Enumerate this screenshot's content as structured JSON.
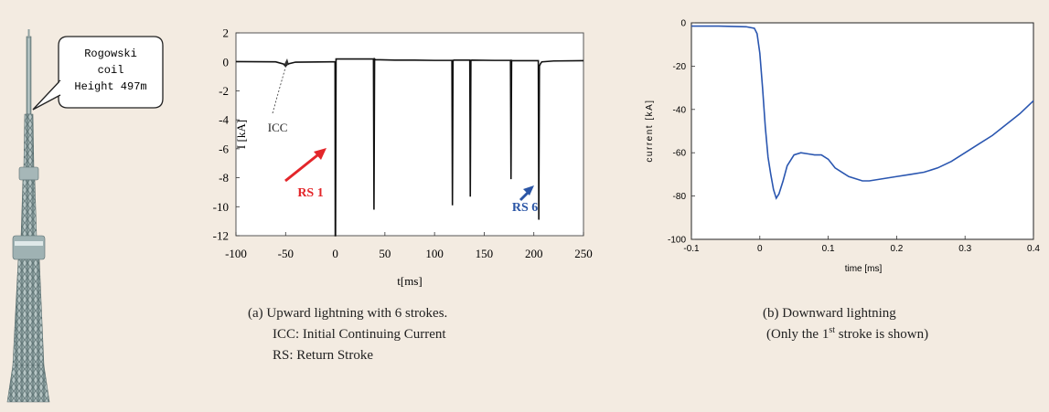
{
  "tower": {
    "callout_lines": [
      "Rogowski",
      "coil",
      "Height 497m"
    ]
  },
  "chart_data": [
    {
      "type": "line",
      "title": "",
      "xlabel": "t[ms]",
      "ylabel": "I [kA]",
      "xlim": [
        -100,
        250
      ],
      "ylim": [
        -12,
        2
      ],
      "xticks": [
        -100,
        -50,
        0,
        50,
        100,
        150,
        200,
        250
      ],
      "yticks": [
        2,
        0,
        -2,
        -4,
        -6,
        -8,
        -10,
        -12
      ],
      "grid": false,
      "color": "#111111",
      "series": [
        {
          "x": [
            -100,
            -60,
            -52,
            -50,
            -48,
            -40,
            -5,
            -0.2,
            0,
            0.3,
            0.8,
            20,
            38.5,
            39,
            39.6,
            40.5,
            60,
            80,
            100,
            117.5,
            118,
            118.6,
            119.5,
            135.5,
            136,
            136.6,
            137.5,
            160,
            176.5,
            177,
            177.6,
            178.5,
            204.5,
            205,
            205.6,
            206.5,
            208,
            220,
            250
          ],
          "y": [
            0.02,
            0.0,
            -0.15,
            -0.3,
            -0.15,
            -0.02,
            0.0,
            0.0,
            -12,
            -12,
            0.2,
            0.2,
            0.2,
            -10.2,
            0.2,
            0.15,
            0.12,
            0.12,
            0.1,
            0.1,
            -9.9,
            0.1,
            0.12,
            0.12,
            -9.3,
            0.1,
            0.12,
            0.1,
            0.1,
            -8.1,
            0.1,
            0.08,
            0.08,
            -10.9,
            -0.3,
            -0.15,
            0.0,
            0.06,
            0.08
          ]
        }
      ],
      "annotations": [
        {
          "text": "ICC",
          "x": -68,
          "y": -4.8
        },
        {
          "text": "RS 1",
          "x": -38,
          "y": -9.3,
          "color": "#e3262a"
        },
        {
          "text": "RS 6",
          "x": 178,
          "y": -10.3,
          "color": "#2b56a6"
        }
      ],
      "caption_lines": [
        "(a) Upward lightning with 6 strokes.",
        "ICC: Initial Continuing Current",
        "RS: Return Stroke"
      ]
    },
    {
      "type": "line",
      "title": "",
      "xlabel": "time [ms]",
      "ylabel": "current [kA]",
      "xlim": [
        -0.1,
        0.4
      ],
      "ylim": [
        -100,
        0
      ],
      "xticks": [
        -0.1,
        0,
        0.1,
        0.2,
        0.3,
        0.4
      ],
      "yticks": [
        0,
        -20,
        -40,
        -60,
        -80,
        -100
      ],
      "grid": false,
      "color": "#2a56b0",
      "series": [
        {
          "x": [
            -0.1,
            -0.06,
            -0.02,
            -0.008,
            -0.004,
            0,
            0.004,
            0.008,
            0.012,
            0.016,
            0.02,
            0.024,
            0.028,
            0.034,
            0.04,
            0.05,
            0.06,
            0.07,
            0.08,
            0.09,
            0.1,
            0.11,
            0.12,
            0.13,
            0.14,
            0.15,
            0.16,
            0.18,
            0.2,
            0.22,
            0.24,
            0.26,
            0.28,
            0.3,
            0.32,
            0.34,
            0.36,
            0.38,
            0.4
          ],
          "y": [
            -1.5,
            -1.5,
            -1.8,
            -2.5,
            -5,
            -14,
            -30,
            -48,
            -62,
            -70,
            -77,
            -81,
            -79,
            -73,
            -66,
            -61,
            -60,
            -60.5,
            -61,
            -61,
            -63,
            -67,
            -69,
            -71,
            -72,
            -73,
            -73,
            -72,
            -71,
            -70,
            -69,
            -67,
            -64,
            -60,
            -56,
            -52,
            -47,
            -42,
            -36
          ]
        }
      ],
      "caption_lines": [
        "(b) Downward lightning",
        "(Only the 1st stroke is shown)"
      ],
      "caption_sup": "st"
    }
  ]
}
